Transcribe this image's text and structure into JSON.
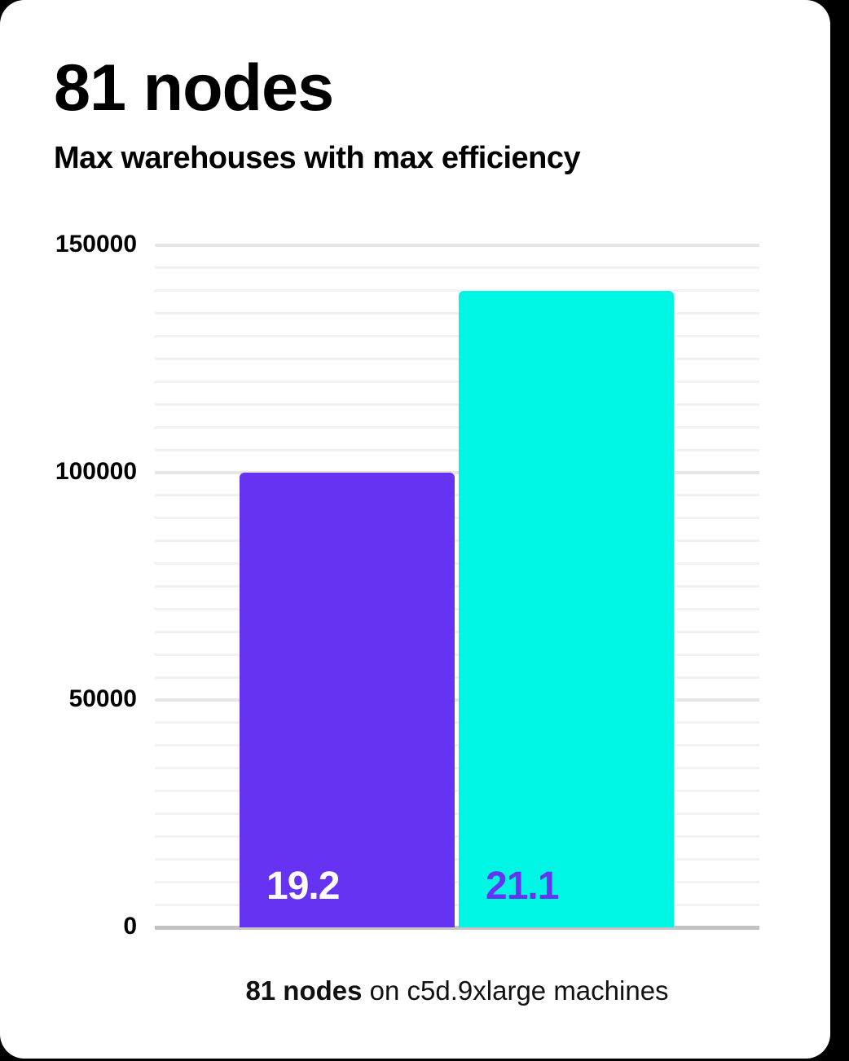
{
  "header": {
    "title": "81 nodes",
    "subtitle": "Max warehouses with max efficiency"
  },
  "chart_data": {
    "type": "bar",
    "title": "81 nodes",
    "subtitle": "Max warehouses with max efficiency",
    "categories": [
      "19.2",
      "21.1"
    ],
    "values": [
      100000,
      140000
    ],
    "bar_labels": [
      "19.2",
      "21.1"
    ],
    "bar_colors": [
      "#6633f2",
      "#00f6e4"
    ],
    "bar_label_colors": [
      "#ffffff",
      "#6633f2"
    ],
    "xlabel": "",
    "ylabel": "",
    "ylim": [
      0,
      150000
    ],
    "yticks": [
      {
        "value": 0,
        "label": "0"
      },
      {
        "value": 50000,
        "label": "50000"
      },
      {
        "value": 100000,
        "label": "100000"
      },
      {
        "value": 150000,
        "label": "150000"
      }
    ],
    "minor_gridline_step": 5000,
    "grid": true,
    "legend": false,
    "grid_colors": {
      "major": "#e6e6e6",
      "minor": "#f2f2f2",
      "baseline": "#c3c3c3"
    }
  },
  "caption": {
    "bold": "81 nodes",
    "rest": " on c5d.9xlarge machines"
  }
}
